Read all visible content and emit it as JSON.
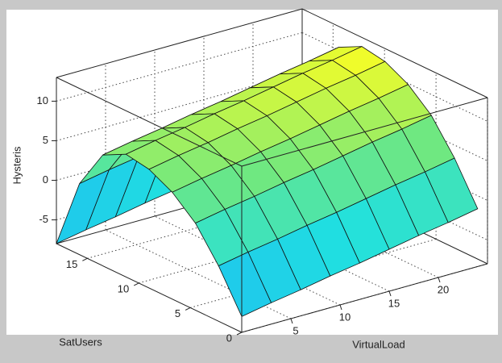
{
  "chart_data": {
    "type": "surface",
    "xlabel": "VirtualLoad",
    "ylabel": "SatUsers",
    "zlabel": "Hysteris",
    "x": [
      0,
      3,
      6,
      9,
      12,
      15,
      18,
      21,
      24
    ],
    "y": [
      0,
      2.25,
      4.5,
      6.75,
      9,
      11.25,
      13.5,
      15.75,
      18
    ],
    "z": [
      [
        -6,
        -5.3,
        -4.7,
        -4,
        -3.4,
        -2.7,
        -2,
        -1.4,
        -0.7
      ],
      [
        -1,
        -0.3,
        0.3,
        1,
        1.6,
        2.3,
        3,
        3.6,
        4.3
      ],
      [
        3,
        3.7,
        4.3,
        5,
        5.6,
        6.3,
        7,
        7.6,
        8.3
      ],
      [
        5.5,
        6.2,
        6.8,
        7.5,
        8.1,
        8.8,
        9.5,
        10.1,
        10.8
      ],
      [
        7,
        7.7,
        8.3,
        9,
        9.6,
        10.3,
        11,
        11.6,
        12.3
      ],
      [
        7.5,
        8.2,
        8.8,
        9.5,
        10.1,
        10.8,
        11.5,
        12.1,
        12.8
      ],
      [
        6,
        6.7,
        7.3,
        8,
        8.6,
        9.3,
        10,
        10.6,
        11.3
      ],
      [
        1,
        1.7,
        2.3,
        3,
        3.6,
        4.3,
        5,
        5.6,
        6.3
      ],
      [
        -8,
        -7.3,
        -6.7,
        -6,
        -5.4,
        -4.7,
        -4,
        -3.4,
        -2.7
      ]
    ],
    "xlim": [
      0,
      25
    ],
    "xticks": [
      5,
      10,
      15,
      20
    ],
    "ylim": [
      0,
      18
    ],
    "yticks": [
      0,
      5,
      10,
      15
    ],
    "zlim": [
      -8,
      13
    ],
    "zticks": [
      -5,
      0,
      5,
      10
    ],
    "grid": true,
    "colormap": [
      "#1ea0ff",
      "#20e0e0",
      "#70e880",
      "#ffff20"
    ]
  }
}
